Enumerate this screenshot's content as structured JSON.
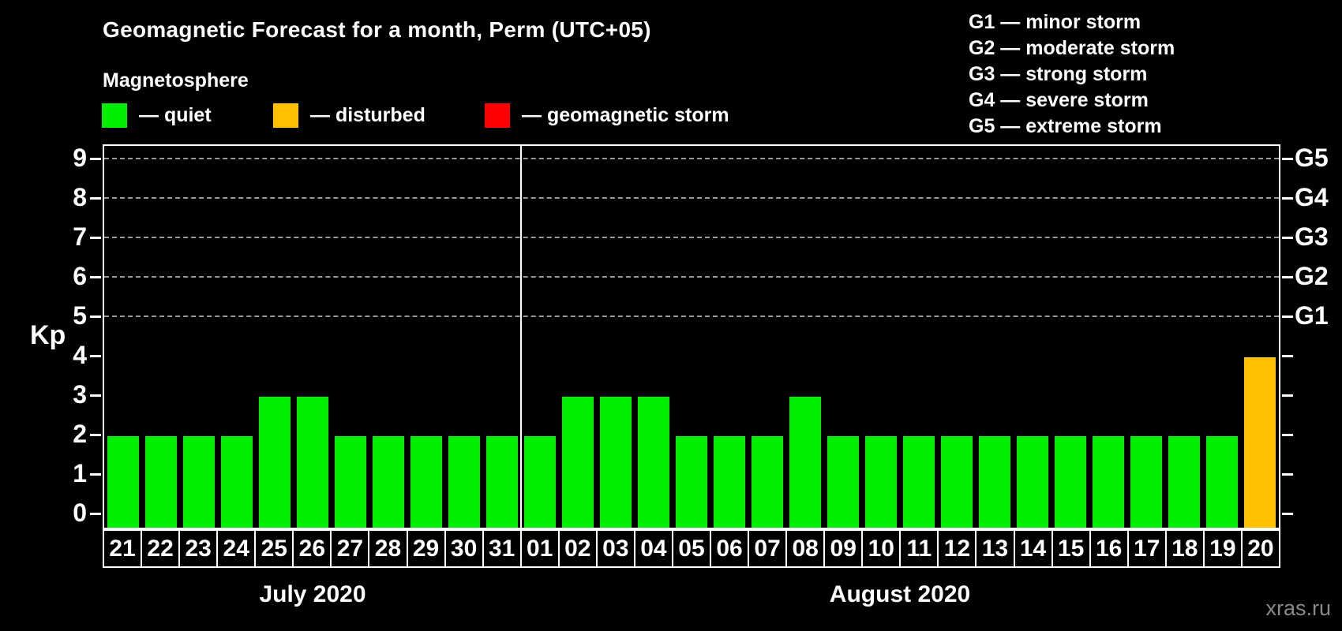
{
  "title": "Geomagnetic Forecast for a month, Perm (UTC+05)",
  "magnetosphere_legend": {
    "heading": "Magnetosphere",
    "items": [
      {
        "name": "quiet",
        "label": "— quiet",
        "color": "#00EE00"
      },
      {
        "name": "disturbed",
        "label": "— disturbed",
        "color": "#FFC000"
      },
      {
        "name": "storm",
        "label": "— geomagnetic storm",
        "color": "#FF0000"
      }
    ]
  },
  "storm_scale_legend": {
    "items": [
      "G1 — minor storm",
      "G2 — moderate storm",
      "G3 — strong storm",
      "G4 — severe storm",
      "G5 — extreme storm"
    ]
  },
  "watermark": "xras.ru",
  "chart_data": {
    "type": "bar",
    "title": "Geomagnetic Forecast for a month, Perm (UTC+05)",
    "ylabel": "Kp",
    "ylim": [
      0,
      9
    ],
    "yticks": [
      0,
      1,
      2,
      3,
      4,
      5,
      6,
      7,
      8,
      9
    ],
    "gridlines_at_kp": [
      5,
      6,
      7,
      8,
      9
    ],
    "grid_style": "dashed gray, only at storm levels G1-G5",
    "legend_position": "top",
    "right_axis_labels": [
      {
        "kp": 5,
        "label": "G1"
      },
      {
        "kp": 6,
        "label": "G2"
      },
      {
        "kp": 7,
        "label": "G3"
      },
      {
        "kp": 8,
        "label": "G4"
      },
      {
        "kp": 9,
        "label": "G5"
      }
    ],
    "status_colors": {
      "quiet": "#00EE00",
      "disturbed": "#FFC000",
      "storm": "#FF0000"
    },
    "months": [
      {
        "label": "July 2020",
        "bars": [
          {
            "day": "21",
            "kp": 2,
            "status": "quiet"
          },
          {
            "day": "22",
            "kp": 2,
            "status": "quiet"
          },
          {
            "day": "23",
            "kp": 2,
            "status": "quiet"
          },
          {
            "day": "24",
            "kp": 2,
            "status": "quiet"
          },
          {
            "day": "25",
            "kp": 3,
            "status": "quiet"
          },
          {
            "day": "26",
            "kp": 3,
            "status": "quiet"
          },
          {
            "day": "27",
            "kp": 2,
            "status": "quiet"
          },
          {
            "day": "28",
            "kp": 2,
            "status": "quiet"
          },
          {
            "day": "29",
            "kp": 2,
            "status": "quiet"
          },
          {
            "day": "30",
            "kp": 2,
            "status": "quiet"
          },
          {
            "day": "31",
            "kp": 2,
            "status": "quiet"
          }
        ]
      },
      {
        "label": "August 2020",
        "bars": [
          {
            "day": "01",
            "kp": 2,
            "status": "quiet"
          },
          {
            "day": "02",
            "kp": 3,
            "status": "quiet"
          },
          {
            "day": "03",
            "kp": 3,
            "status": "quiet"
          },
          {
            "day": "04",
            "kp": 3,
            "status": "quiet"
          },
          {
            "day": "05",
            "kp": 2,
            "status": "quiet"
          },
          {
            "day": "06",
            "kp": 2,
            "status": "quiet"
          },
          {
            "day": "07",
            "kp": 2,
            "status": "quiet"
          },
          {
            "day": "08",
            "kp": 3,
            "status": "quiet"
          },
          {
            "day": "09",
            "kp": 2,
            "status": "quiet"
          },
          {
            "day": "10",
            "kp": 2,
            "status": "quiet"
          },
          {
            "day": "11",
            "kp": 2,
            "status": "quiet"
          },
          {
            "day": "12",
            "kp": 2,
            "status": "quiet"
          },
          {
            "day": "13",
            "kp": 2,
            "status": "quiet"
          },
          {
            "day": "14",
            "kp": 2,
            "status": "quiet"
          },
          {
            "day": "15",
            "kp": 2,
            "status": "quiet"
          },
          {
            "day": "16",
            "kp": 2,
            "status": "quiet"
          },
          {
            "day": "17",
            "kp": 2,
            "status": "quiet"
          },
          {
            "day": "18",
            "kp": 2,
            "status": "quiet"
          },
          {
            "day": "19",
            "kp": 2,
            "status": "quiet"
          },
          {
            "day": "20",
            "kp": 4,
            "status": "disturbed"
          }
        ]
      }
    ]
  }
}
